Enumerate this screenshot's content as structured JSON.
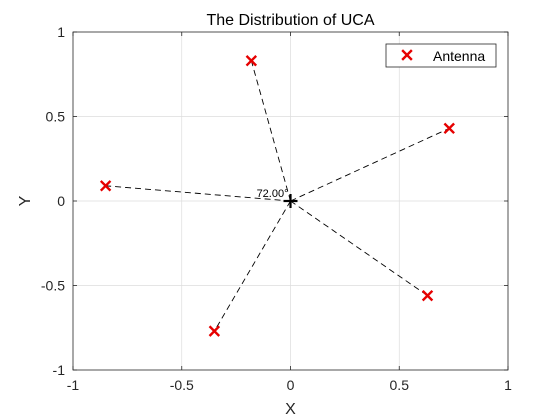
{
  "chart_data": {
    "type": "scatter",
    "title": "The Distribution of UCA",
    "xlabel": "X",
    "ylabel": "Y",
    "xlim": [
      -1,
      1
    ],
    "ylim": [
      -1,
      1
    ],
    "xticks": [
      -1,
      -0.5,
      0,
      0.5,
      1
    ],
    "yticks": [
      -1,
      -0.5,
      0,
      0.5,
      1
    ],
    "xtick_labels": [
      "-1",
      "-0.5",
      "0",
      "0.5",
      "1"
    ],
    "ytick_labels": [
      "-1",
      "-0.5",
      "0",
      "0.5",
      "1"
    ],
    "grid": true,
    "legend_position": "top-right",
    "series": [
      {
        "name": "Antenna",
        "marker": "x",
        "color": "#e60000",
        "x": [
          0.73,
          -0.18,
          -0.85,
          -0.35,
          0.63
        ],
        "y": [
          0.43,
          0.83,
          0.09,
          -0.77,
          -0.56
        ]
      }
    ],
    "center": {
      "x": 0,
      "y": 0,
      "marker": "+",
      "color": "#000000"
    },
    "spokes": {
      "style": "dashed",
      "color": "#000000"
    },
    "annotation": {
      "text": "72.00°",
      "x": 0,
      "y": 0
    }
  }
}
